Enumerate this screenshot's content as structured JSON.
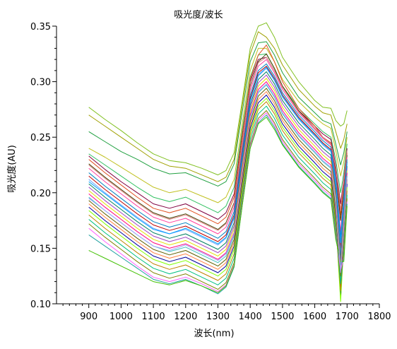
{
  "chart_data": {
    "type": "line",
    "title": "吸光度/波长",
    "xlabel": "波长(nm)",
    "ylabel": "吸光度(AU)",
    "xlim": [
      800,
      1800
    ],
    "ylim": [
      0.1,
      0.35
    ],
    "x_ticks": [
      900,
      1000,
      1100,
      1200,
      1300,
      1400,
      1500,
      1600,
      1700,
      1800
    ],
    "y_ticks": [
      0.1,
      0.15,
      0.2,
      0.25,
      0.3,
      0.35
    ],
    "x_tick_labels": [
      "900",
      "1000",
      "1100",
      "1200",
      "1300",
      "1400",
      "1500",
      "1600",
      "1700",
      "1800"
    ],
    "y_tick_labels": [
      "0.10",
      "0.15",
      "0.20",
      "0.25",
      "0.30",
      "0.35"
    ],
    "grid": false,
    "legend": "none",
    "x": [
      900,
      950,
      1000,
      1050,
      1100,
      1150,
      1200,
      1250,
      1300,
      1325,
      1350,
      1375,
      1400,
      1425,
      1450,
      1475,
      1500,
      1550,
      1600,
      1625,
      1650,
      1665,
      1680,
      1690,
      1700
    ],
    "series": [
      {
        "color": "#80c020",
        "values": [
          0.277,
          0.266,
          0.256,
          0.245,
          0.235,
          0.229,
          0.227,
          0.222,
          0.216,
          0.22,
          0.236,
          0.282,
          0.33,
          0.35,
          0.353,
          0.34,
          0.322,
          0.3,
          0.283,
          0.277,
          0.276,
          0.265,
          0.26,
          0.262,
          0.274
        ]
      },
      {
        "color": "#a0a000",
        "values": [
          0.27,
          0.26,
          0.25,
          0.24,
          0.23,
          0.224,
          0.222,
          0.216,
          0.21,
          0.214,
          0.23,
          0.278,
          0.325,
          0.345,
          0.34,
          0.33,
          0.315,
          0.293,
          0.278,
          0.272,
          0.27,
          0.255,
          0.24,
          0.248,
          0.262
        ]
      },
      {
        "color": "#20a040",
        "values": [
          0.255,
          0.246,
          0.237,
          0.23,
          0.222,
          0.217,
          0.218,
          0.212,
          0.206,
          0.21,
          0.226,
          0.272,
          0.318,
          0.335,
          0.336,
          0.324,
          0.308,
          0.286,
          0.272,
          0.265,
          0.262,
          0.244,
          0.225,
          0.236,
          0.255
        ]
      },
      {
        "color": "#c0c020",
        "values": [
          0.24,
          0.232,
          0.223,
          0.214,
          0.205,
          0.2,
          0.203,
          0.197,
          0.191,
          0.196,
          0.212,
          0.262,
          0.31,
          0.33,
          0.33,
          0.318,
          0.302,
          0.282,
          0.268,
          0.262,
          0.258,
          0.238,
          0.215,
          0.228,
          0.25
        ]
      },
      {
        "color": "#30c060",
        "values": [
          0.235,
          0.225,
          0.215,
          0.205,
          0.196,
          0.192,
          0.196,
          0.189,
          0.182,
          0.188,
          0.205,
          0.256,
          0.304,
          0.324,
          0.325,
          0.312,
          0.296,
          0.276,
          0.262,
          0.255,
          0.25,
          0.23,
          0.2,
          0.218,
          0.244
        ]
      },
      {
        "color": "#800040",
        "values": [
          0.233,
          0.221,
          0.21,
          0.2,
          0.19,
          0.186,
          0.19,
          0.183,
          0.176,
          0.182,
          0.199,
          0.252,
          0.3,
          0.32,
          0.322,
          0.31,
          0.295,
          0.274,
          0.26,
          0.253,
          0.248,
          0.224,
          0.19,
          0.212,
          0.24
        ]
      },
      {
        "color": "#e05020",
        "values": [
          0.23,
          0.218,
          0.207,
          0.196,
          0.186,
          0.182,
          0.186,
          0.179,
          0.172,
          0.178,
          0.196,
          0.25,
          0.302,
          0.324,
          0.333,
          0.318,
          0.3,
          0.276,
          0.26,
          0.25,
          0.245,
          0.22,
          0.18,
          0.205,
          0.236
        ]
      },
      {
        "color": "#404000",
        "values": [
          0.226,
          0.214,
          0.203,
          0.192,
          0.182,
          0.177,
          0.181,
          0.174,
          0.167,
          0.173,
          0.191,
          0.245,
          0.296,
          0.318,
          0.325,
          0.312,
          0.296,
          0.274,
          0.258,
          0.25,
          0.244,
          0.218,
          0.175,
          0.202,
          0.234
        ]
      },
      {
        "color": "#ff40a0",
        "values": [
          0.222,
          0.21,
          0.199,
          0.188,
          0.178,
          0.173,
          0.177,
          0.17,
          0.163,
          0.169,
          0.187,
          0.241,
          0.292,
          0.314,
          0.32,
          0.308,
          0.293,
          0.272,
          0.257,
          0.249,
          0.243,
          0.215,
          0.165,
          0.198,
          0.232
        ]
      },
      {
        "color": "#0080c0",
        "values": [
          0.218,
          0.206,
          0.195,
          0.184,
          0.174,
          0.169,
          0.173,
          0.166,
          0.159,
          0.165,
          0.183,
          0.237,
          0.288,
          0.31,
          0.316,
          0.305,
          0.29,
          0.27,
          0.255,
          0.247,
          0.241,
          0.212,
          0.16,
          0.195,
          0.23
        ]
      },
      {
        "color": "#c00000",
        "values": [
          0.215,
          0.203,
          0.192,
          0.181,
          0.171,
          0.166,
          0.17,
          0.163,
          0.156,
          0.162,
          0.18,
          0.234,
          0.285,
          0.308,
          0.314,
          0.303,
          0.288,
          0.268,
          0.253,
          0.245,
          0.239,
          0.208,
          0.15,
          0.19,
          0.228
        ]
      },
      {
        "color": "#60a0ff",
        "values": [
          0.212,
          0.2,
          0.189,
          0.178,
          0.168,
          0.163,
          0.167,
          0.16,
          0.153,
          0.159,
          0.177,
          0.231,
          0.282,
          0.305,
          0.312,
          0.301,
          0.286,
          0.266,
          0.251,
          0.243,
          0.237,
          0.205,
          0.145,
          0.186,
          0.226
        ]
      },
      {
        "color": "#008060",
        "values": [
          0.208,
          0.196,
          0.185,
          0.174,
          0.164,
          0.159,
          0.163,
          0.156,
          0.149,
          0.155,
          0.173,
          0.228,
          0.279,
          0.302,
          0.309,
          0.298,
          0.283,
          0.263,
          0.248,
          0.24,
          0.234,
          0.202,
          0.14,
          0.182,
          0.224
        ]
      },
      {
        "color": "#a040c0",
        "values": [
          0.205,
          0.193,
          0.182,
          0.171,
          0.161,
          0.156,
          0.16,
          0.153,
          0.146,
          0.152,
          0.17,
          0.225,
          0.276,
          0.299,
          0.306,
          0.295,
          0.28,
          0.26,
          0.245,
          0.237,
          0.231,
          0.198,
          0.135,
          0.178,
          0.222
        ]
      },
      {
        "color": "#e0e000",
        "values": [
          0.202,
          0.19,
          0.179,
          0.168,
          0.158,
          0.153,
          0.157,
          0.15,
          0.143,
          0.149,
          0.167,
          0.222,
          0.273,
          0.296,
          0.303,
          0.292,
          0.277,
          0.257,
          0.242,
          0.234,
          0.228,
          0.195,
          0.13,
          0.175,
          0.22
        ]
      },
      {
        "color": "#ff0080",
        "values": [
          0.199,
          0.187,
          0.176,
          0.165,
          0.155,
          0.15,
          0.154,
          0.147,
          0.14,
          0.146,
          0.164,
          0.219,
          0.27,
          0.293,
          0.3,
          0.289,
          0.274,
          0.254,
          0.239,
          0.231,
          0.225,
          0.192,
          0.125,
          0.172,
          0.218
        ]
      },
      {
        "color": "#40c0c0",
        "values": [
          0.196,
          0.184,
          0.173,
          0.162,
          0.152,
          0.147,
          0.151,
          0.144,
          0.137,
          0.143,
          0.161,
          0.216,
          0.267,
          0.29,
          0.297,
          0.286,
          0.271,
          0.251,
          0.236,
          0.228,
          0.222,
          0.188,
          0.12,
          0.168,
          0.215
        ]
      },
      {
        "color": "#606000",
        "values": [
          0.193,
          0.181,
          0.17,
          0.159,
          0.149,
          0.144,
          0.148,
          0.141,
          0.134,
          0.14,
          0.158,
          0.213,
          0.264,
          0.287,
          0.294,
          0.283,
          0.268,
          0.248,
          0.233,
          0.225,
          0.219,
          0.185,
          0.115,
          0.165,
          0.212
        ]
      },
      {
        "color": "#ff8040",
        "values": [
          0.19,
          0.178,
          0.167,
          0.156,
          0.146,
          0.141,
          0.145,
          0.138,
          0.131,
          0.137,
          0.155,
          0.21,
          0.261,
          0.284,
          0.291,
          0.28,
          0.265,
          0.245,
          0.23,
          0.222,
          0.216,
          0.182,
          0.11,
          0.162,
          0.21
        ]
      },
      {
        "color": "#0000a0",
        "values": [
          0.187,
          0.175,
          0.164,
          0.153,
          0.143,
          0.138,
          0.142,
          0.135,
          0.128,
          0.134,
          0.152,
          0.207,
          0.258,
          0.281,
          0.288,
          0.277,
          0.262,
          0.242,
          0.227,
          0.219,
          0.213,
          0.178,
          0.105,
          0.158,
          0.208
        ]
      },
      {
        "color": "#80ff00",
        "values": [
          0.184,
          0.172,
          0.161,
          0.15,
          0.14,
          0.135,
          0.139,
          0.132,
          0.125,
          0.131,
          0.149,
          0.204,
          0.255,
          0.278,
          0.285,
          0.274,
          0.259,
          0.239,
          0.224,
          0.216,
          0.21,
          0.175,
          0.102,
          0.155,
          0.205
        ]
      },
      {
        "color": "#c08000",
        "values": [
          0.18,
          0.168,
          0.157,
          0.146,
          0.136,
          0.131,
          0.135,
          0.128,
          0.121,
          0.127,
          0.145,
          0.2,
          0.252,
          0.275,
          0.282,
          0.271,
          0.256,
          0.236,
          0.221,
          0.213,
          0.207,
          0.172,
          0.112,
          0.152,
          0.202
        ]
      },
      {
        "color": "#00c080",
        "values": [
          0.176,
          0.164,
          0.153,
          0.142,
          0.132,
          0.127,
          0.131,
          0.124,
          0.117,
          0.123,
          0.141,
          0.196,
          0.248,
          0.271,
          0.278,
          0.267,
          0.252,
          0.232,
          0.217,
          0.209,
          0.203,
          0.168,
          0.118,
          0.148,
          0.198
        ]
      },
      {
        "color": "#808000",
        "values": [
          0.172,
          0.16,
          0.149,
          0.138,
          0.128,
          0.123,
          0.127,
          0.12,
          0.113,
          0.119,
          0.137,
          0.192,
          0.244,
          0.267,
          0.274,
          0.263,
          0.248,
          0.228,
          0.213,
          0.205,
          0.199,
          0.164,
          0.125,
          0.145,
          0.195
        ]
      },
      {
        "color": "#ff60ff",
        "values": [
          0.168,
          0.156,
          0.145,
          0.134,
          0.124,
          0.12,
          0.124,
          0.118,
          0.111,
          0.117,
          0.135,
          0.19,
          0.242,
          0.265,
          0.272,
          0.261,
          0.246,
          0.226,
          0.211,
          0.203,
          0.197,
          0.162,
          0.13,
          0.142,
          0.192
        ]
      },
      {
        "color": "#20a0a0",
        "values": [
          0.162,
          0.152,
          0.142,
          0.132,
          0.122,
          0.118,
          0.122,
          0.116,
          0.109,
          0.115,
          0.133,
          0.188,
          0.24,
          0.263,
          0.27,
          0.259,
          0.244,
          0.224,
          0.209,
          0.201,
          0.195,
          0.16,
          0.135,
          0.14,
          0.19
        ]
      },
      {
        "color": "#40c000",
        "values": [
          0.148,
          0.141,
          0.134,
          0.127,
          0.12,
          0.117,
          0.121,
          0.116,
          0.11,
          0.116,
          0.134,
          0.188,
          0.24,
          0.262,
          0.268,
          0.257,
          0.243,
          0.223,
          0.208,
          0.2,
          0.194,
          0.158,
          0.138,
          0.138,
          0.188
        ]
      },
      {
        "color": "#e08080",
        "values": [
          0.225,
          0.213,
          0.202,
          0.191,
          0.181,
          0.176,
          0.18,
          0.173,
          0.166,
          0.172,
          0.19,
          0.244,
          0.295,
          0.317,
          0.322,
          0.31,
          0.295,
          0.273,
          0.258,
          0.25,
          0.244,
          0.222,
          0.185,
          0.21,
          0.238
        ]
      },
      {
        "color": "#00a0ff",
        "values": [
          0.21,
          0.199,
          0.188,
          0.177,
          0.167,
          0.163,
          0.168,
          0.161,
          0.154,
          0.16,
          0.178,
          0.232,
          0.283,
          0.306,
          0.313,
          0.302,
          0.287,
          0.267,
          0.252,
          0.244,
          0.238,
          0.21,
          0.155,
          0.192,
          0.228
        ]
      },
      {
        "color": "#a0a0ff",
        "values": [
          0.195,
          0.184,
          0.173,
          0.162,
          0.152,
          0.148,
          0.153,
          0.146,
          0.139,
          0.145,
          0.163,
          0.217,
          0.268,
          0.291,
          0.298,
          0.287,
          0.272,
          0.252,
          0.237,
          0.229,
          0.223,
          0.192,
          0.128,
          0.17,
          0.214
        ]
      }
    ]
  }
}
